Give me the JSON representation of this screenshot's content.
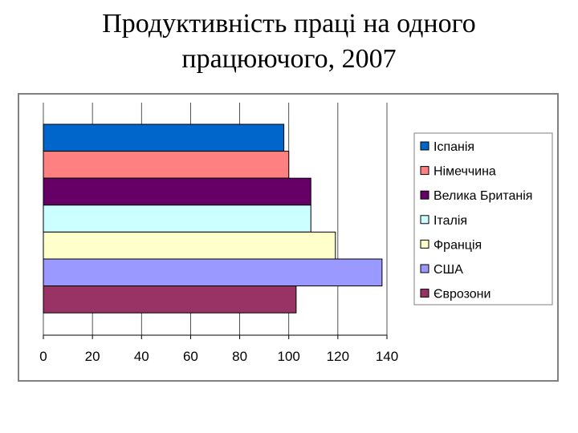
{
  "title": {
    "line1": "Продуктивність праці на одного",
    "line2": "працюючого, 2007"
  },
  "chart_data": {
    "type": "bar",
    "orientation": "horizontal",
    "categories": [
      "Іспанія",
      "Німеччина",
      "Велика Британія",
      "Італія",
      "Франція",
      "США",
      "Єврозони"
    ],
    "series": [
      {
        "values": [
          98,
          100,
          109,
          109,
          119,
          138,
          103
        ]
      }
    ],
    "colors": [
      "#0066CC",
      "#FF8080",
      "#660066",
      "#CCFFFF",
      "#FFFFCC",
      "#9999FF",
      "#993366"
    ],
    "xlim": [
      0,
      140
    ],
    "xticks": [
      "0",
      "20",
      "40",
      "60",
      "80",
      "100",
      "120",
      "140"
    ],
    "xlabel": "",
    "ylabel": "",
    "legend": {
      "position": "right",
      "entries": [
        "Іспанія",
        "Німеччина",
        "Велика Британія",
        "Італія",
        "Франція",
        "США",
        "Єврозони"
      ]
    },
    "grid": {
      "x": true,
      "y": false
    }
  }
}
